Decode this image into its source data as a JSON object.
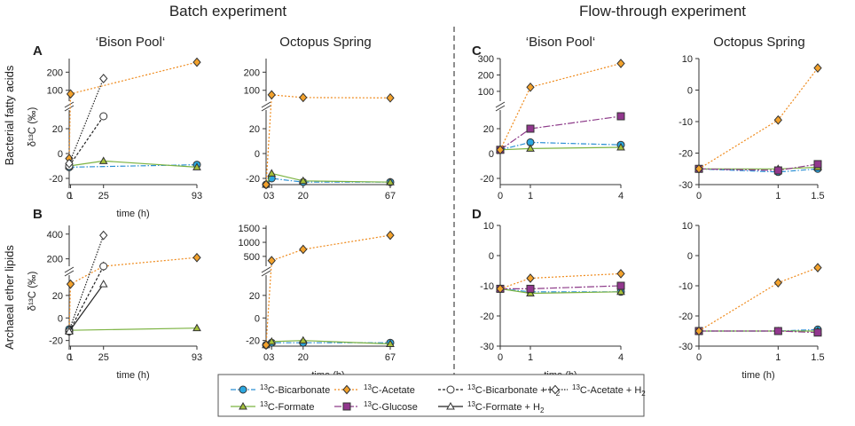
{
  "figure": {
    "section_titles": [
      "Batch experiment",
      "Flow-through experiment"
    ],
    "column_titles": [
      "‘Bison Pool‘",
      "Octopus Spring",
      "‘Bison Pool‘",
      "Octopus Spring"
    ],
    "row_labels": [
      "Bacterial fatty acids",
      "Archaeal ether lipids"
    ],
    "panel_letters": [
      "A",
      "B",
      "C",
      "D"
    ],
    "y_axis_label": "δ¹³C (‰)",
    "x_axis_label": "time (h)"
  },
  "series_styles": {
    "bicarbonate": {
      "label": "13C-Bicarbonate",
      "color": "#2a8fd4",
      "fill": "#2aa7e0",
      "marker": "circle",
      "dash": "6,2,1.5,2"
    },
    "acetate": {
      "label": "13C-Acetate",
      "color": "#ef8b1d",
      "fill": "#f3a22c",
      "marker": "diamond",
      "dash": "2,2"
    },
    "bicarbonate_h2": {
      "label": "13C-Bicarbonate + H2",
      "color": "#222222",
      "fill": "#ffffff",
      "marker": "circle",
      "dash": "3,2"
    },
    "acetate_h2": {
      "label": "13C-Acetate + H2",
      "color": "#222222",
      "fill": "#ffffff",
      "marker": "diamond",
      "dash": "1.5,1.5"
    },
    "formate": {
      "label": "13C-Formate",
      "color": "#7cb342",
      "fill": "#a5c13a",
      "marker": "triangle",
      "dash": ""
    },
    "glucose": {
      "label": "13C-Glucose",
      "color": "#8e3c8a",
      "fill": "#92378e",
      "marker": "square",
      "dash": "8,2,2,2"
    },
    "formate_h2": {
      "label": "13C-Formate + H2",
      "color": "#222222",
      "fill": "#ffffff",
      "marker": "triangle",
      "dash": ""
    }
  },
  "legend": {
    "rows": [
      [
        {
          "key": "bicarbonate",
          "sup": "13",
          "main": "C-Bicarbonate",
          "sub": ""
        },
        {
          "key": "acetate",
          "sup": "13",
          "main": "C-Acetate",
          "sub": ""
        },
        {
          "key": "bicarbonate_h2",
          "sup": "13",
          "main": "C-Bicarbonate + H",
          "sub": "2"
        },
        {
          "key": "acetate_h2",
          "sup": "13",
          "main": "C-Acetate + H",
          "sub": "2"
        }
      ],
      [
        {
          "key": "formate",
          "sup": "13",
          "main": "C-Formate",
          "sub": ""
        },
        {
          "key": "glucose",
          "sup": "13",
          "main": "C-Glucose",
          "sub": ""
        },
        {
          "key": "formate_h2",
          "sup": "13",
          "main": "C-Formate + H",
          "sub": "2"
        }
      ]
    ]
  },
  "chart_data": [
    {
      "type": "line",
      "panel": "A",
      "title": "‘Bison Pool‘",
      "subtitle": "Bacterial fatty acids",
      "xlabel": "time (h)",
      "ylabel": "δ¹³C (‰)",
      "xlim": [
        0,
        93
      ],
      "xticks": [
        0,
        1,
        25,
        93
      ],
      "y_break": true,
      "ylim_lower": [
        -25,
        35
      ],
      "yticks_lower": [
        -20,
        0,
        20
      ],
      "ylim_upper": [
        40,
        275
      ],
      "yticks_upper": [
        100,
        200
      ],
      "series": [
        {
          "key": "bicarbonate",
          "x": [
            0,
            93
          ],
          "y": [
            -11,
            -9
          ]
        },
        {
          "key": "formate",
          "x": [
            0,
            25,
            93
          ],
          "y": [
            -10,
            -6,
            -11
          ]
        },
        {
          "key": "acetate",
          "x": [
            0,
            1,
            93
          ],
          "y": [
            -4,
            80,
            255
          ]
        },
        {
          "key": "bicarbonate_h2",
          "x": [
            0,
            25
          ],
          "y": [
            -10,
            30
          ]
        },
        {
          "key": "acetate_h2",
          "x": [
            0,
            25
          ],
          "y": [
            -8,
            165
          ]
        }
      ]
    },
    {
      "type": "line",
      "panel": "",
      "title": "Octopus Spring",
      "subtitle": "Bacterial fatty acids",
      "xlabel": "",
      "ylabel": "",
      "xlim": [
        0,
        67
      ],
      "xticks": [
        0,
        3,
        20,
        67
      ],
      "y_break": true,
      "ylim_lower": [
        -25,
        35
      ],
      "yticks_lower": [
        -20,
        0,
        20
      ],
      "ylim_upper": [
        40,
        275
      ],
      "yticks_upper": [
        100,
        200
      ],
      "series": [
        {
          "key": "bicarbonate",
          "x": [
            0,
            3,
            20,
            67
          ],
          "y": [
            -25,
            -20,
            -23,
            -23
          ]
        },
        {
          "key": "formate",
          "x": [
            0,
            3,
            20,
            67
          ],
          "y": [
            -25,
            -16,
            -22,
            -23
          ]
        },
        {
          "key": "acetate",
          "x": [
            0,
            3,
            20,
            67
          ],
          "y": [
            -25,
            75,
            60,
            58
          ]
        }
      ]
    },
    {
      "type": "line",
      "panel": "C",
      "title": "‘Bison Pool‘",
      "subtitle": "Bacterial fatty acids",
      "xlabel": "",
      "ylabel": "",
      "xlim": [
        0,
        4
      ],
      "xticks": [
        0,
        1,
        4
      ],
      "y_break": true,
      "ylim_lower": [
        -25,
        35
      ],
      "yticks_lower": [
        -20,
        0,
        20
      ],
      "ylim_upper": [
        40,
        300
      ],
      "yticks_upper": [
        100,
        200,
        300
      ],
      "series": [
        {
          "key": "bicarbonate",
          "x": [
            0,
            1,
            4
          ],
          "y": [
            3,
            9,
            7
          ]
        },
        {
          "key": "formate",
          "x": [
            0,
            1,
            4
          ],
          "y": [
            3,
            4,
            5
          ]
        },
        {
          "key": "glucose",
          "x": [
            0,
            1,
            4
          ],
          "y": [
            3,
            20,
            30
          ]
        },
        {
          "key": "acetate",
          "x": [
            0,
            1,
            4
          ],
          "y": [
            3,
            125,
            270
          ]
        }
      ]
    },
    {
      "type": "line",
      "panel": "",
      "title": "Octopus Spring",
      "subtitle": "Bacterial fatty acids",
      "xlabel": "",
      "ylabel": "",
      "xlim": [
        0,
        1.5
      ],
      "xticks": [
        0,
        1,
        1.5
      ],
      "y_break": false,
      "ylim": [
        -30,
        10
      ],
      "yticks": [
        -30,
        -20,
        -10,
        0,
        10
      ],
      "series": [
        {
          "key": "bicarbonate",
          "x": [
            0,
            1,
            1.5
          ],
          "y": [
            -25,
            -26,
            -25
          ]
        },
        {
          "key": "formate",
          "x": [
            0,
            1,
            1.5
          ],
          "y": [
            -25,
            -25,
            -24.5
          ]
        },
        {
          "key": "glucose",
          "x": [
            0,
            1,
            1.5
          ],
          "y": [
            -25,
            -25.5,
            -23.5
          ]
        },
        {
          "key": "acetate",
          "x": [
            0,
            1,
            1.5
          ],
          "y": [
            -25,
            -9.5,
            7
          ]
        }
      ]
    },
    {
      "type": "line",
      "panel": "B",
      "title": "‘Bison Pool‘",
      "subtitle": "Archaeal ether lipids",
      "xlabel": "time (h)",
      "ylabel": "δ¹³C (‰)",
      "xlim": [
        0,
        93
      ],
      "xticks": [
        0,
        1,
        25,
        93
      ],
      "y_break": true,
      "ylim_lower": [
        -25,
        38
      ],
      "yticks_lower": [
        -20,
        0,
        20
      ],
      "ylim_upper": [
        140,
        470
      ],
      "yticks_upper": [
        200,
        400
      ],
      "series": [
        {
          "key": "formate",
          "x": [
            0,
            93
          ],
          "y": [
            -11,
            -9
          ]
        },
        {
          "key": "bicarbonate",
          "x": [
            0
          ],
          "y": [
            -10
          ]
        },
        {
          "key": "acetate",
          "x": [
            0,
            1,
            25,
            93
          ],
          "y": [
            -12,
            30,
            75,
            210
          ]
        },
        {
          "key": "bicarbonate_h2",
          "x": [
            0,
            25
          ],
          "y": [
            -12,
            80
          ]
        },
        {
          "key": "acetate_h2",
          "x": [
            0,
            25
          ],
          "y": [
            -11,
            390
          ]
        },
        {
          "key": "formate_h2",
          "x": [
            0,
            25
          ],
          "y": [
            -12,
            30
          ]
        }
      ]
    },
    {
      "type": "line",
      "panel": "",
      "title": "Octopus Spring",
      "subtitle": "Archaeal ether lipids",
      "xlabel": "time (h)",
      "ylabel": "",
      "xlim": [
        0,
        67
      ],
      "xticks": [
        0,
        3,
        20,
        67
      ],
      "y_break": true,
      "ylim_lower": [
        -25,
        38
      ],
      "yticks_lower": [
        -20,
        0,
        20
      ],
      "ylim_upper": [
        150,
        1600
      ],
      "yticks_upper": [
        500,
        1000,
        1500
      ],
      "series": [
        {
          "key": "bicarbonate",
          "x": [
            0,
            3,
            20,
            67
          ],
          "y": [
            -24,
            -22,
            -22,
            -22
          ]
        },
        {
          "key": "formate",
          "x": [
            0,
            3,
            20,
            67
          ],
          "y": [
            -24,
            -21,
            -20,
            -23
          ]
        },
        {
          "key": "acetate",
          "x": [
            0,
            3,
            20,
            67
          ],
          "y": [
            -24,
            350,
            750,
            1250
          ]
        }
      ]
    },
    {
      "type": "line",
      "panel": "D",
      "title": "‘Bison Pool‘",
      "subtitle": "Archaeal ether lipids",
      "xlabel": "time (h)",
      "ylabel": "",
      "xlim": [
        0,
        4
      ],
      "xticks": [
        0,
        1,
        4
      ],
      "y_break": false,
      "ylim": [
        -30,
        10
      ],
      "yticks": [
        -30,
        -20,
        -10,
        0,
        10
      ],
      "series": [
        {
          "key": "bicarbonate",
          "x": [
            0,
            1,
            4
          ],
          "y": [
            -11,
            -12,
            -12
          ]
        },
        {
          "key": "formate",
          "x": [
            0,
            1,
            4
          ],
          "y": [
            -11,
            -12.5,
            -12
          ]
        },
        {
          "key": "glucose",
          "x": [
            0,
            1,
            4
          ],
          "y": [
            -11,
            -11,
            -10
          ]
        },
        {
          "key": "acetate",
          "x": [
            0,
            1,
            4
          ],
          "y": [
            -11,
            -7.5,
            -6
          ]
        }
      ]
    },
    {
      "type": "line",
      "panel": "",
      "title": "Octopus Spring",
      "subtitle": "Archaeal ether lipids",
      "xlabel": "time (h)",
      "ylabel": "",
      "xlim": [
        0,
        1.5
      ],
      "xticks": [
        0,
        1,
        1.5
      ],
      "y_break": false,
      "ylim": [
        -30,
        10
      ],
      "yticks": [
        -30,
        -20,
        -10,
        0,
        10
      ],
      "series": [
        {
          "key": "bicarbonate",
          "x": [
            0,
            1,
            1.5
          ],
          "y": [
            -25,
            -25,
            -24.5
          ]
        },
        {
          "key": "formate",
          "x": [
            0,
            1,
            1.5
          ],
          "y": [
            -25,
            -25,
            -25
          ]
        },
        {
          "key": "glucose",
          "x": [
            0,
            1,
            1.5
          ],
          "y": [
            -25,
            -25,
            -25.5
          ]
        },
        {
          "key": "acetate",
          "x": [
            0,
            1,
            1.5
          ],
          "y": [
            -25,
            -9,
            -4
          ]
        }
      ]
    }
  ]
}
